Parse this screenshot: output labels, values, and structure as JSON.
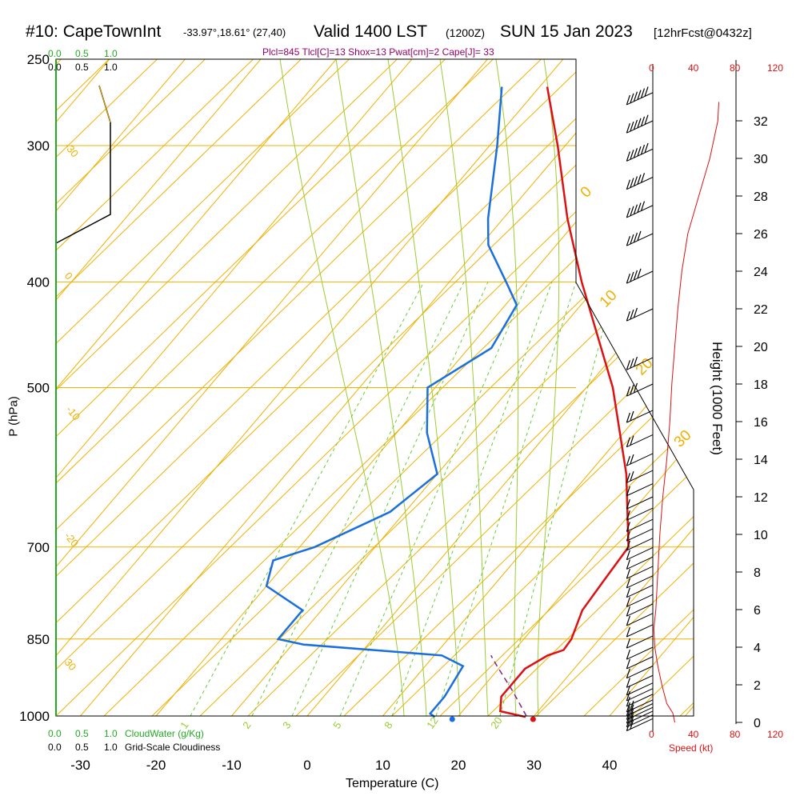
{
  "header": {
    "station": "#10: CapeTownInt",
    "coords": "-33.97°,18.61° (27,40)",
    "valid": "Valid 1400 LST",
    "utc": "(1200Z)",
    "date": "SUN 15 Jan 2023",
    "forecast": "[12hrFcst@0432z]",
    "indices": "Plcl=845 Tlcl[C]=13 Shox=13 Pwat[cm]=2 Cape[J]= 33"
  },
  "colors": {
    "isotherm": "#f0b000",
    "dry_adiabat": "#f0b000",
    "moist_adiabat": "#9acd32",
    "mixing_ratio": "#66cc33",
    "temperature": "#dd1111",
    "dewpoint": "#1a6fe0",
    "parcel": "#8a2080",
    "speed": "#dd1111",
    "cloudwater_label": "#22aa22",
    "indices": "#990066"
  },
  "labels": {
    "x_axis": "Temperature (C)",
    "y_axis": "P (hPa)",
    "right_axis": "Height (1000 Feet)",
    "speed_axis": "Speed (kt)",
    "cloudwater": "CloudWater (g/Kg)",
    "cloudiness": "Grid-Scale Cloudiness"
  },
  "cloud_scale": {
    "green_ticks": [
      "0.0",
      "0.5",
      "1.0"
    ],
    "black_ticks": [
      "0.0",
      "0.5",
      "1.0"
    ]
  },
  "speed_ticks_top": [
    "0",
    "40",
    "80",
    "120"
  ],
  "speed_ticks_bottom": [
    "0",
    "40",
    "80",
    "120"
  ],
  "chart_data": {
    "type": "line",
    "title": "#10: CapeTownInt Valid 1400 LST (1200Z) SUN 15 Jan 2023",
    "xlabel": "Temperature (C)",
    "ylabel": "P (hPa)",
    "xlim": [
      -35,
      45
    ],
    "pressure_ticks": [
      1000,
      850,
      700,
      500,
      400,
      300,
      250
    ],
    "temp_ticks": [
      -30,
      -20,
      -10,
      0,
      10,
      20,
      30,
      40
    ],
    "height_ticks": [
      0,
      2,
      4,
      6,
      8,
      10,
      12,
      14,
      16,
      18,
      20,
      22,
      24,
      26,
      28,
      30,
      32
    ],
    "isotherm_labels": [
      -30,
      -20,
      -10,
      0,
      10,
      20,
      30
    ],
    "dry_adiabat_labels": [
      10,
      0,
      -10,
      -20,
      0,
      10,
      20,
      30
    ],
    "mixing_ratio_labels": [
      "1",
      "2",
      "3",
      "5",
      "8",
      "12",
      "20"
    ],
    "series": [
      {
        "name": "temperature",
        "points": [
          [
            1002,
            29.0
          ],
          [
            990,
            25.0
          ],
          [
            960,
            23.5
          ],
          [
            905,
            23.5
          ],
          [
            880,
            25.0
          ],
          [
            870,
            26.5
          ],
          [
            850,
            26.3
          ],
          [
            800,
            24.5
          ],
          [
            750,
            24.0
          ],
          [
            700,
            23.5
          ],
          [
            600,
            15.0
          ],
          [
            500,
            3.5
          ],
          [
            400,
            -12.5
          ],
          [
            350,
            -21.5
          ],
          [
            300,
            -31.0
          ],
          [
            265,
            -39.0
          ]
        ]
      },
      {
        "name": "dewpoint",
        "points": [
          [
            1002,
            17.0
          ],
          [
            995,
            16.0
          ],
          [
            960,
            16.0
          ],
          [
            900,
            15.0
          ],
          [
            880,
            11.0
          ],
          [
            860,
            -8.5
          ],
          [
            850,
            -12.5
          ],
          [
            800,
            -12.5
          ],
          [
            760,
            -20.0
          ],
          [
            720,
            -22.0
          ],
          [
            700,
            -18.0
          ],
          [
            650,
            -12.0
          ],
          [
            600,
            -10.0
          ],
          [
            550,
            -16.0
          ],
          [
            500,
            -21.0
          ],
          [
            460,
            -17.0
          ],
          [
            420,
            -18.5
          ],
          [
            400,
            -22.5
          ],
          [
            370,
            -29.0
          ],
          [
            350,
            -32.0
          ],
          [
            300,
            -39.0
          ],
          [
            265,
            -45.0
          ]
        ]
      },
      {
        "name": "parcel",
        "points": [
          [
            1000,
            29.0
          ],
          [
            950,
            24.5
          ],
          [
            900,
            19.5
          ],
          [
            880,
            17.5
          ]
        ]
      }
    ],
    "surface_markers": {
      "temperature": 30.2,
      "dewpoint": 19.5
    },
    "wind_speed_profile": [
      [
        0,
        22
      ],
      [
        0.5,
        20
      ],
      [
        1,
        14
      ],
      [
        2,
        9
      ],
      [
        3,
        5
      ],
      [
        4,
        2
      ],
      [
        5,
        1
      ],
      [
        6,
        3
      ],
      [
        8,
        5
      ],
      [
        10,
        7
      ],
      [
        12,
        10
      ],
      [
        14,
        14
      ],
      [
        16,
        17
      ],
      [
        18,
        19
      ],
      [
        20,
        22
      ],
      [
        22,
        25
      ],
      [
        24,
        29
      ],
      [
        26,
        35
      ],
      [
        28,
        46
      ],
      [
        30,
        57
      ],
      [
        32,
        65
      ],
      [
        33,
        66
      ]
    ],
    "wind_barb_heights": [
      0.2,
      0.4,
      0.6,
      0.8,
      1.0,
      1.2,
      1.5,
      1.8,
      2.1,
      2.5,
      3.0,
      3.5,
      4.0,
      4.6,
      5.2,
      5.8,
      6.3,
      6.8,
      7.3,
      7.8,
      8.3,
      8.8,
      9.3,
      9.8,
      10.3,
      10.8,
      11.4,
      12.0,
      12.7,
      13.4,
      14.3,
      15.3,
      16.6,
      18.0,
      19.4,
      22.0,
      24.0,
      26.0,
      27.5,
      29.0,
      30.5,
      32.0,
      33.5
    ],
    "wind_barb_speeds": [
      15,
      15,
      15,
      15,
      15,
      15,
      10,
      10,
      10,
      10,
      10,
      10,
      10,
      10,
      10,
      10,
      10,
      10,
      10,
      10,
      10,
      10,
      10,
      10,
      10,
      10,
      10,
      10,
      10,
      15,
      15,
      20,
      20,
      25,
      25,
      30,
      35,
      40,
      45,
      50,
      55,
      60,
      60
    ],
    "tropopause_curve": [
      [
        250,
        -27
      ],
      [
        280,
        -27
      ],
      [
        350,
        -27
      ],
      [
        370,
        -35
      ]
    ]
  }
}
